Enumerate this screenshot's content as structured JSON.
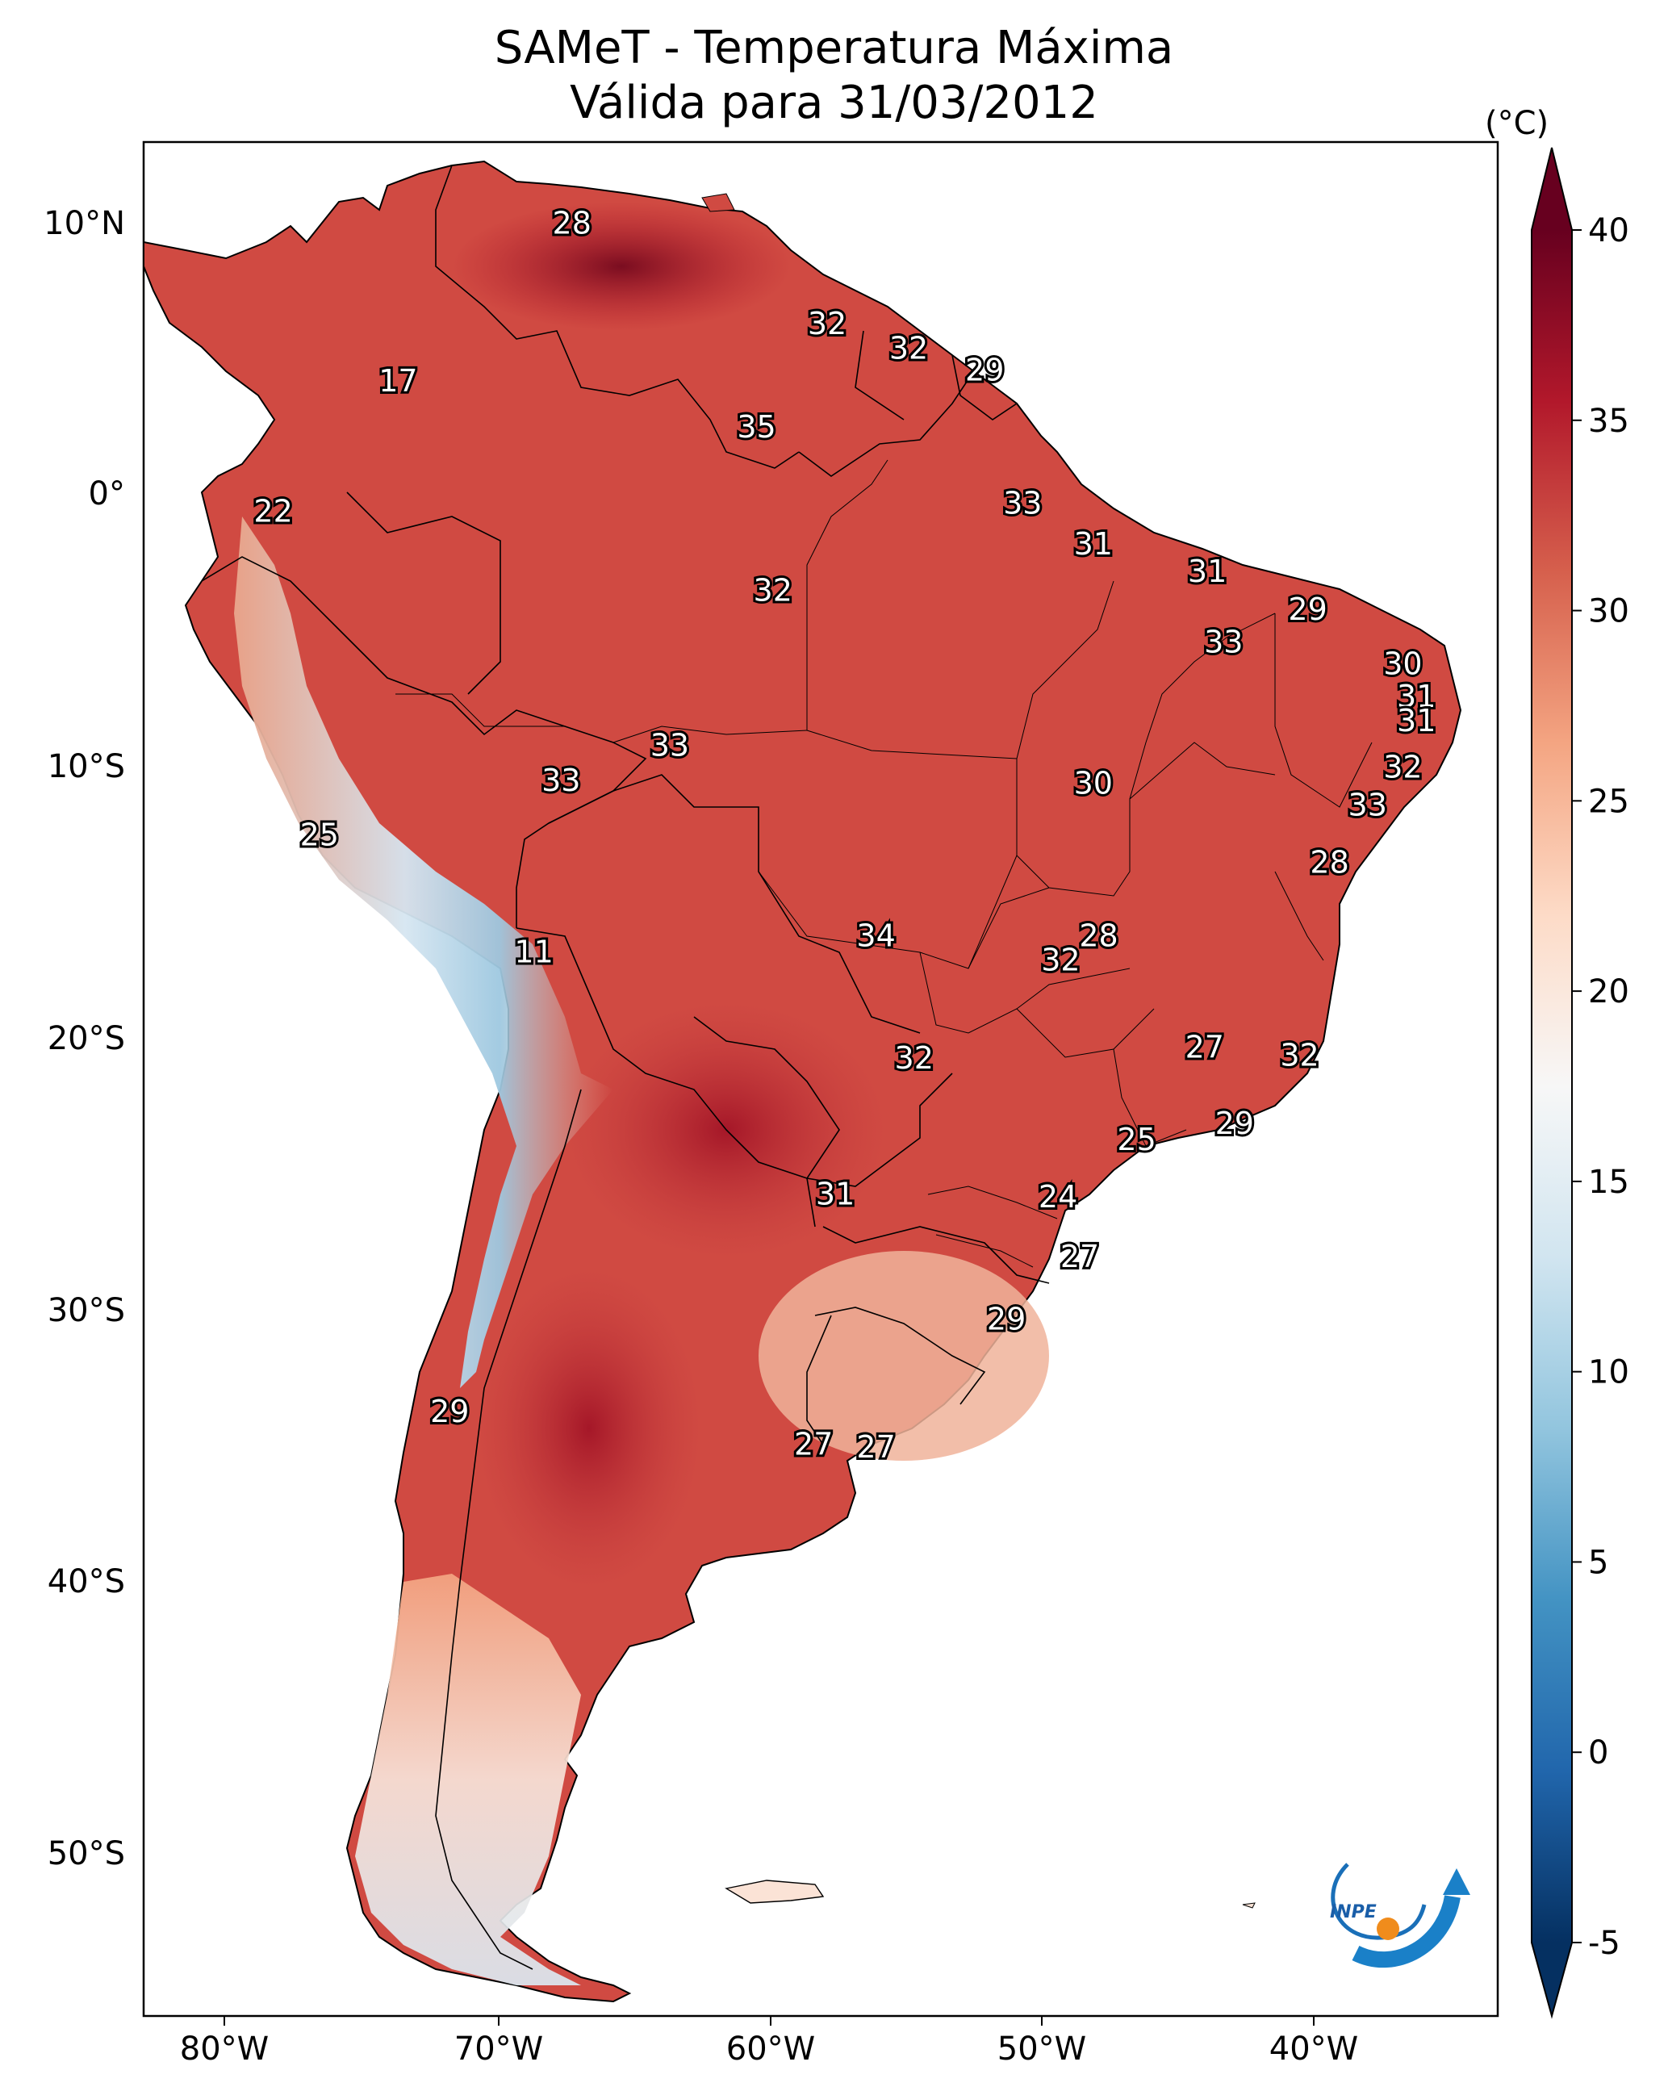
{
  "title": "SAMeT - Temperatura Máxima",
  "subtitle": "Válida para 31/03/2012",
  "unit": "(°C)",
  "logo_text": "INPE",
  "colorbar": {
    "min": -5,
    "max": 40,
    "ticks": [
      "40",
      "35",
      "30",
      "25",
      "20",
      "15",
      "10",
      "5",
      "0",
      "-5"
    ],
    "stops": [
      "#053061",
      "#2166ac",
      "#4393c3",
      "#92c5de",
      "#d1e5f0",
      "#f7f7f7",
      "#fddbc7",
      "#f4a582",
      "#d6604d",
      "#b2182b",
      "#67001f"
    ]
  },
  "axes": {
    "lon_ticks": [
      "80°W",
      "70°W",
      "60°W",
      "50°W",
      "40°W"
    ],
    "lat_ticks": [
      "10°N",
      "0°",
      "10°S",
      "20°S",
      "30°S",
      "40°S",
      "50°S"
    ]
  },
  "temperature_labels": [
    {
      "value": "28",
      "lon": -67.2,
      "lat": 10.3
    },
    {
      "value": "17",
      "lon": -73.6,
      "lat": 4.5
    },
    {
      "value": "32",
      "lon": -57.8,
      "lat": 6.6
    },
    {
      "value": "32",
      "lon": -54.8,
      "lat": 5.7
    },
    {
      "value": "29",
      "lon": -52.0,
      "lat": 4.9
    },
    {
      "value": "35",
      "lon": -60.4,
      "lat": 2.8
    },
    {
      "value": "22",
      "lon": -78.2,
      "lat": -0.3
    },
    {
      "value": "33",
      "lon": -50.6,
      "lat": 0.0
    },
    {
      "value": "31",
      "lon": -48.0,
      "lat": -1.5
    },
    {
      "value": "31",
      "lon": -43.8,
      "lat": -2.5
    },
    {
      "value": "32",
      "lon": -59.8,
      "lat": -3.2
    },
    {
      "value": "29",
      "lon": -40.1,
      "lat": -3.9
    },
    {
      "value": "33",
      "lon": -43.2,
      "lat": -5.1
    },
    {
      "value": "30",
      "lon": -36.6,
      "lat": -5.9
    },
    {
      "value": "31",
      "lon": -36.1,
      "lat": -7.1
    },
    {
      "value": "31",
      "lon": -36.1,
      "lat": -8.0
    },
    {
      "value": "33",
      "lon": -63.6,
      "lat": -8.9
    },
    {
      "value": "33",
      "lon": -67.6,
      "lat": -10.2
    },
    {
      "value": "30",
      "lon": -48.0,
      "lat": -10.3
    },
    {
      "value": "32",
      "lon": -36.6,
      "lat": -9.7
    },
    {
      "value": "33",
      "lon": -37.9,
      "lat": -11.1
    },
    {
      "value": "25",
      "lon": -76.5,
      "lat": -12.2
    },
    {
      "value": "28",
      "lon": -39.3,
      "lat": -13.2
    },
    {
      "value": "34",
      "lon": -56.0,
      "lat": -15.9
    },
    {
      "value": "28",
      "lon": -47.8,
      "lat": -15.9
    },
    {
      "value": "32",
      "lon": -49.2,
      "lat": -16.8
    },
    {
      "value": "11",
      "lon": -68.6,
      "lat": -16.5
    },
    {
      "value": "27",
      "lon": -43.9,
      "lat": -20.0
    },
    {
      "value": "32",
      "lon": -40.4,
      "lat": -20.3
    },
    {
      "value": "32",
      "lon": -54.6,
      "lat": -20.4
    },
    {
      "value": "29",
      "lon": -42.8,
      "lat": -22.8
    },
    {
      "value": "25",
      "lon": -46.4,
      "lat": -23.4
    },
    {
      "value": "24",
      "lon": -49.3,
      "lat": -25.5
    },
    {
      "value": "31",
      "lon": -57.5,
      "lat": -25.4
    },
    {
      "value": "27",
      "lon": -48.5,
      "lat": -27.7
    },
    {
      "value": "29",
      "lon": -51.2,
      "lat": -30.0
    },
    {
      "value": "29",
      "lon": -71.7,
      "lat": -33.4
    },
    {
      "value": "27",
      "lon": -58.3,
      "lat": -34.6
    },
    {
      "value": "27",
      "lon": -56.0,
      "lat": -34.7
    }
  ]
}
